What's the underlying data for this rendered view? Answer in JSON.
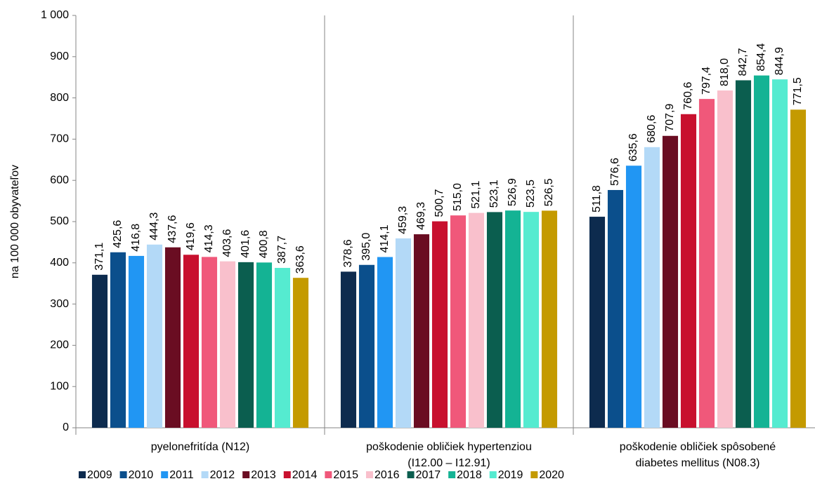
{
  "chart_data": {
    "type": "bar",
    "y_label": "na 100 000 obyvateľov",
    "categories": [
      "pyelonefritída (N12)",
      "poškodenie obličiek hypertenziou (I12.00 – I12.91)",
      "poškodenie obličiek spôsobené diabetes mellitus (N08.3)"
    ],
    "ylim": [
      0,
      1000
    ],
    "yticks": [
      0,
      100,
      200,
      300,
      400,
      500,
      600,
      700,
      800,
      900,
      {
        "value": 1000,
        "label": "1 000"
      }
    ],
    "grid": false,
    "legend": "bottom",
    "series": [
      {
        "name": "2009",
        "color": "#0d2b4e",
        "values": [
          371.1,
          378.6,
          511.8
        ],
        "value_labels": [
          "371,1",
          "378,6",
          "511,8"
        ]
      },
      {
        "name": "2010",
        "color": "#0b4f8c",
        "values": [
          425.6,
          395.0,
          576.6
        ],
        "value_labels": [
          "425,6",
          "395,0",
          "576,6"
        ]
      },
      {
        "name": "2011",
        "color": "#2196f3",
        "values": [
          416.8,
          414.1,
          635.6
        ],
        "value_labels": [
          "416,8",
          "414,1",
          "635,6"
        ]
      },
      {
        "name": "2012",
        "color": "#b3d9f7",
        "values": [
          444.3,
          459.3,
          680.6
        ],
        "value_labels": [
          "444,3",
          "459,3",
          "680,6"
        ]
      },
      {
        "name": "2013",
        "color": "#6a0d22",
        "values": [
          437.6,
          469.3,
          707.9
        ],
        "value_labels": [
          "437,6",
          "469,3",
          "707,9"
        ]
      },
      {
        "name": "2014",
        "color": "#c8102e",
        "values": [
          419.6,
          500.7,
          760.6
        ],
        "value_labels": [
          "419,6",
          "500,7",
          "760,6"
        ]
      },
      {
        "name": "2015",
        "color": "#f0587a",
        "values": [
          414.3,
          515.0,
          797.4
        ],
        "value_labels": [
          "414,3",
          "515,0",
          "797,4"
        ]
      },
      {
        "name": "2016",
        "color": "#f9c0cc",
        "values": [
          403.6,
          521.1,
          818.0
        ],
        "value_labels": [
          "403,6",
          "521,1",
          "818,0"
        ]
      },
      {
        "name": "2017",
        "color": "#0b5e4f",
        "values": [
          401.6,
          523.1,
          842.7
        ],
        "value_labels": [
          "401,6",
          "523,1",
          "842,7"
        ]
      },
      {
        "name": "2018",
        "color": "#14b394",
        "values": [
          400.8,
          526.9,
          854.4
        ],
        "value_labels": [
          "400,8",
          "526,9",
          "854,4"
        ]
      },
      {
        "name": "2019",
        "color": "#55ebd0",
        "values": [
          387.7,
          523.5,
          844.9
        ],
        "value_labels": [
          "387,7",
          "523,5",
          "844,9"
        ]
      },
      {
        "name": "2020",
        "color": "#c49a00",
        "values": [
          363.6,
          526.5,
          771.5
        ],
        "value_labels": [
          "363,6",
          "526,5",
          "771,5"
        ]
      }
    ]
  }
}
